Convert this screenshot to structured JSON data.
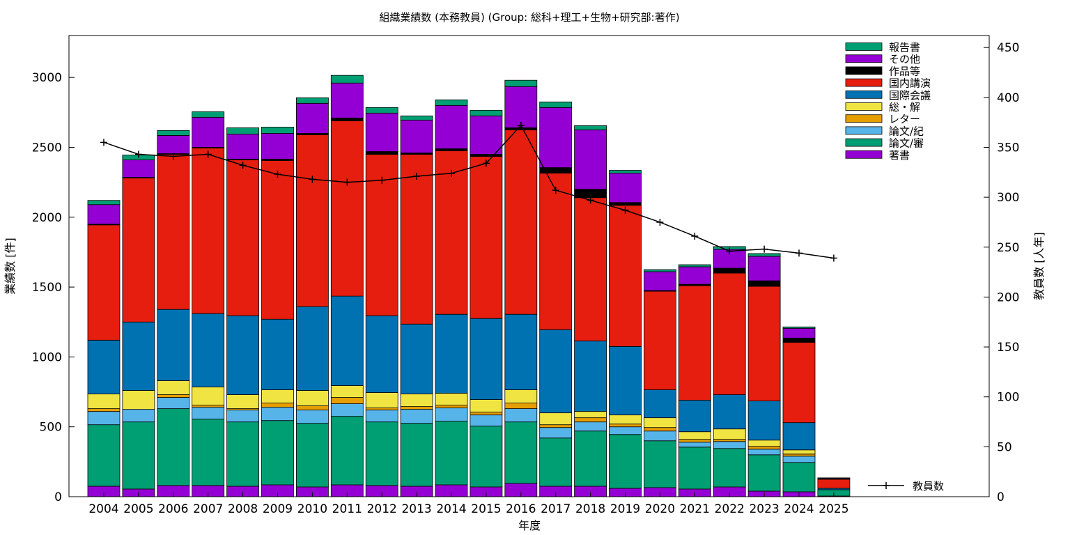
{
  "chart_data": {
    "type": "bar",
    "stacked": true,
    "title": "組織業績数 (本務教員) (Group: 総科+理工+生物+研究部:著作)",
    "xlabel": "年度",
    "ylabel": "業績数 [件]",
    "y2label": "教員数 [人年]",
    "ylim": [
      0,
      3300
    ],
    "y2lim": [
      0,
      462
    ],
    "yticks": [
      0,
      500,
      1000,
      1500,
      2000,
      2500,
      3000
    ],
    "y2ticks": [
      0,
      50,
      100,
      150,
      200,
      250,
      300,
      350,
      400,
      450
    ],
    "legend_position": "top-right",
    "categories": [
      "2004",
      "2005",
      "2006",
      "2007",
      "2008",
      "2009",
      "2010",
      "2011",
      "2012",
      "2013",
      "2014",
      "2015",
      "2016",
      "2017",
      "2018",
      "2019",
      "2020",
      "2021",
      "2022",
      "2023",
      "2024",
      "2025"
    ],
    "series": [
      {
        "name": "著書",
        "color": "#9400d3",
        "values": [
          75,
          55,
          80,
          80,
          75,
          85,
          70,
          85,
          80,
          75,
          85,
          70,
          95,
          75,
          75,
          60,
          65,
          55,
          70,
          40,
          35,
          5
        ]
      },
      {
        "name": "論文/審",
        "color": "#009e73",
        "values": [
          440,
          480,
          550,
          475,
          460,
          460,
          455,
          490,
          455,
          450,
          455,
          435,
          440,
          345,
          395,
          385,
          335,
          300,
          275,
          260,
          210,
          45
        ]
      },
      {
        "name": "論文/紀",
        "color": "#56b4e9",
        "values": [
          95,
          90,
          80,
          85,
          85,
          95,
          95,
          90,
          85,
          100,
          95,
          80,
          95,
          75,
          65,
          55,
          70,
          35,
          50,
          40,
          45,
          0
        ]
      },
      {
        "name": "レター",
        "color": "#e69f00",
        "values": [
          20,
          0,
          20,
          15,
          10,
          30,
          30,
          45,
          15,
          20,
          20,
          20,
          40,
          20,
          30,
          20,
          25,
          20,
          15,
          20,
          15,
          0
        ]
      },
      {
        "name": "総・解",
        "color": "#f0e442",
        "values": [
          105,
          135,
          100,
          130,
          100,
          95,
          110,
          85,
          110,
          90,
          85,
          90,
          95,
          85,
          45,
          65,
          70,
          55,
          75,
          45,
          30,
          0
        ]
      },
      {
        "name": "国際会議",
        "color": "#0072b2",
        "values": [
          385,
          490,
          510,
          525,
          565,
          505,
          600,
          640,
          550,
          500,
          565,
          580,
          540,
          595,
          505,
          490,
          200,
          225,
          245,
          280,
          195,
          10
        ]
      },
      {
        "name": "国内講演",
        "color": "#e51e10",
        "values": [
          825,
          1030,
          1110,
          1185,
          1115,
          1135,
          1230,
          1255,
          1155,
          1215,
          1170,
          1160,
          1320,
          1120,
          1025,
          1010,
          705,
          820,
          870,
          820,
          575,
          65
        ]
      },
      {
        "name": "作品等",
        "color": "#000000",
        "values": [
          5,
          5,
          5,
          5,
          5,
          10,
          10,
          20,
          20,
          10,
          15,
          15,
          15,
          40,
          60,
          20,
          5,
          10,
          35,
          40,
          30,
          0
        ]
      },
      {
        "name": "その他",
        "color": "#9400d3",
        "values": [
          140,
          125,
          130,
          215,
          180,
          185,
          215,
          250,
          275,
          235,
          310,
          275,
          295,
          430,
          425,
          210,
          135,
          125,
          135,
          175,
          70,
          5
        ]
      },
      {
        "name": "報告書",
        "color": "#009e73",
        "values": [
          30,
          35,
          35,
          40,
          45,
          45,
          40,
          55,
          40,
          30,
          40,
          40,
          45,
          40,
          30,
          20,
          15,
          15,
          20,
          20,
          10,
          5
        ]
      }
    ],
    "line": {
      "name": "教員数",
      "color": "#000000",
      "axis": "y2",
      "values": [
        355,
        343,
        341,
        343,
        332,
        323,
        318,
        315,
        317,
        321,
        324,
        334,
        372,
        307,
        297,
        287,
        275,
        261,
        246,
        248,
        244,
        239
      ]
    }
  }
}
